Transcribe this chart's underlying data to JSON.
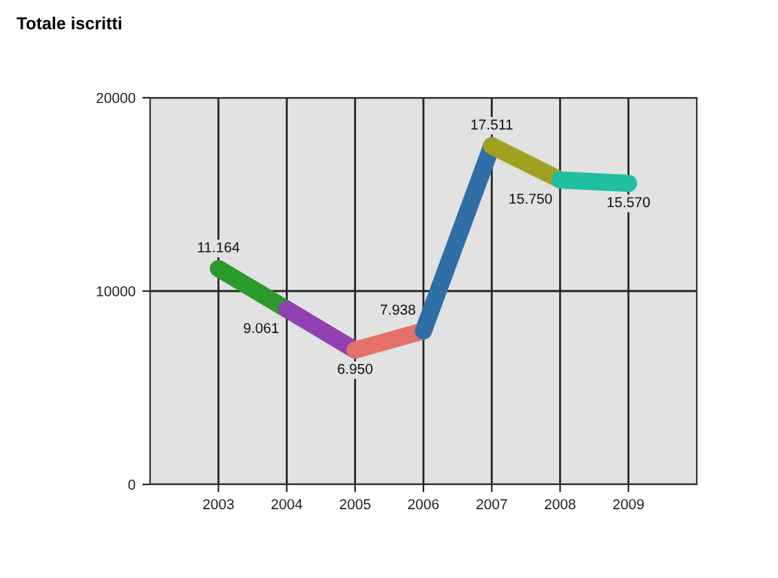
{
  "chart_data": {
    "type": "line",
    "title": "Totale iscritti",
    "categories": [
      "2003",
      "2004",
      "2005",
      "2006",
      "2007",
      "2008",
      "2009"
    ],
    "series": [
      {
        "color": "#2a9a2a",
        "values": [
          11164,
          9061,
          null,
          null,
          null,
          null,
          null
        ],
        "value_labels": [
          "11.164",
          null,
          null,
          null,
          null,
          null,
          null
        ]
      },
      {
        "color": "#9040b0",
        "values": [
          null,
          9061,
          6950,
          null,
          null,
          null,
          null
        ],
        "value_labels": [
          null,
          "9.061",
          null,
          null,
          null,
          null,
          null
        ]
      },
      {
        "color": "#e4706a",
        "values": [
          null,
          null,
          6950,
          7938,
          null,
          null,
          null
        ],
        "value_labels": [
          null,
          null,
          "6.950",
          null,
          null,
          null,
          null
        ]
      },
      {
        "color": "#2f6ea6",
        "values": [
          null,
          null,
          null,
          7938,
          17511,
          null,
          null
        ],
        "value_labels": [
          null,
          null,
          null,
          "7.938",
          null,
          null,
          null
        ]
      },
      {
        "color": "#a0a020",
        "values": [
          null,
          null,
          null,
          null,
          17511,
          15750,
          null
        ],
        "value_labels": [
          null,
          null,
          null,
          null,
          "17.511",
          null,
          null
        ]
      },
      {
        "color": "#1fbf9f",
        "values": [
          null,
          null,
          null,
          null,
          null,
          15750,
          15570
        ],
        "value_labels": [
          null,
          null,
          null,
          null,
          null,
          "15.750",
          "15.570"
        ]
      }
    ],
    "ylim": [
      0,
      20000
    ],
    "yticks": [
      0,
      10000,
      20000
    ],
    "grid": true
  }
}
